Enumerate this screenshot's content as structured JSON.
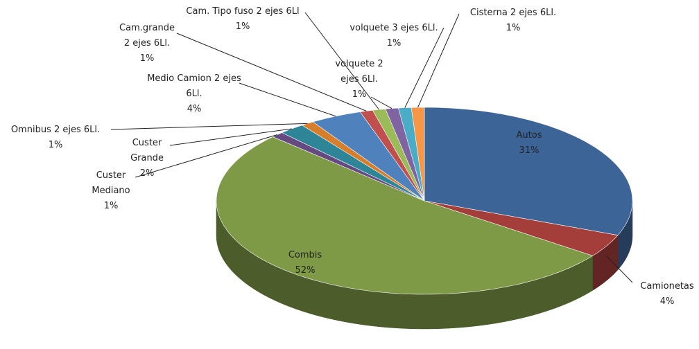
{
  "chart_data": {
    "type": "pie3d",
    "categories": [
      "Autos",
      "Camionetas",
      "Combis",
      "Custer Mediano",
      "Custer Grande",
      "Omnibus 2 ejes 6Ll.",
      "Medio Camion 2 ejes 6Ll.",
      "Cam.grande 2 ejes 6Ll.",
      "Cam. Tipo fuso 2 ejes 6Ll",
      "volquete 2 ejes 6Ll.",
      "volquete 3 ejes 6Ll.",
      "Cisterna 2 ejes 6Ll."
    ],
    "values": [
      31,
      4,
      52,
      1,
      2,
      1,
      4,
      1,
      1,
      1,
      1,
      1
    ],
    "value_labels": [
      "31%",
      "4%",
      "52%",
      "1%",
      "2%",
      "1%",
      "4%",
      "1%",
      "1%",
      "1%",
      "1%",
      "1%"
    ],
    "colors": [
      "#3d6496",
      "#a33e3a",
      "#7e9a47",
      "#654a82",
      "#2f8598",
      "#d67e2c",
      "#4f81bd",
      "#c0504d",
      "#9bbb59",
      "#8064a2",
      "#4bacc6",
      "#f79646"
    ]
  }
}
